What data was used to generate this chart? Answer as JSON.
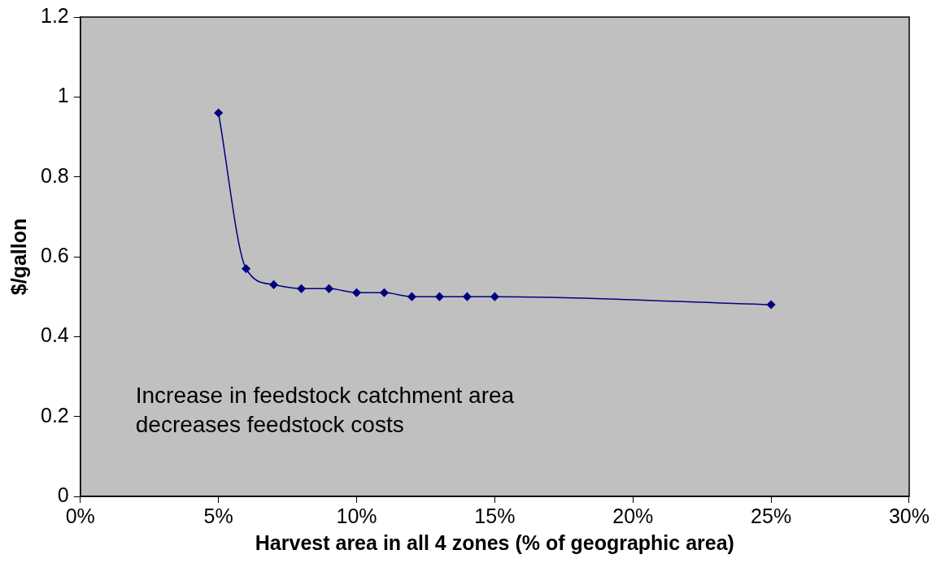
{
  "chart_data": {
    "type": "line",
    "xlabel": "Harvest area in all 4 zones (% of geographic area)",
    "ylabel": "$/gallon",
    "x": [
      5,
      6,
      7,
      8,
      9,
      10,
      11,
      12,
      13,
      14,
      15,
      25
    ],
    "series": [
      {
        "color": "#000080",
        "values": [
          0.96,
          0.57,
          0.53,
          0.52,
          0.52,
          0.51,
          0.51,
          0.5,
          0.5,
          0.5,
          0.5,
          0.48
        ]
      }
    ],
    "xlim": [
      0,
      30
    ],
    "xticks": [
      {
        "value": 0,
        "label": "0%"
      },
      {
        "value": 5,
        "label": "5%"
      },
      {
        "value": 10,
        "label": "10%"
      },
      {
        "value": 15,
        "label": "15%"
      },
      {
        "value": 20,
        "label": "20%"
      },
      {
        "value": 25,
        "label": "25%"
      },
      {
        "value": 30,
        "label": "30%"
      }
    ],
    "ylim": [
      0,
      1.2
    ],
    "yticks": [
      0,
      0.2,
      0.4,
      0.6,
      0.8,
      1,
      1.2
    ],
    "grid": false,
    "legend": false,
    "marker": "diamond",
    "line_style": "solid",
    "annotations": [
      "Increase in feedstock catchment area\ndecreases feedstock costs"
    ]
  }
}
